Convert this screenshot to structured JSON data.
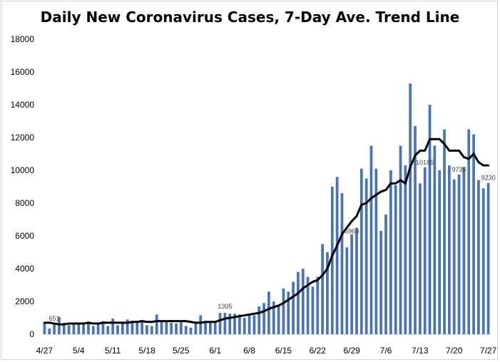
{
  "chart_data": {
    "type": "bar",
    "title": "Daily New Coronavirus Cases, 7-Day Ave. Trend Line",
    "xlabel": "",
    "ylabel": "",
    "ylim": [
      0,
      18000
    ],
    "y_ticks": [
      0,
      2000,
      4000,
      6000,
      8000,
      10000,
      12000,
      14000,
      16000,
      18000
    ],
    "x_ticks": [
      "4/27",
      "5/4",
      "5/11",
      "5/18",
      "5/25",
      "6/1",
      "6/8",
      "6/15",
      "6/22",
      "6/29",
      "7/6",
      "7/13",
      "7/20",
      "7/27"
    ],
    "grid": false,
    "legend": "none",
    "colors": {
      "bars": "#4a74b4",
      "trend": "#000000"
    },
    "series": [
      {
        "type": "bar",
        "values": [
          700,
          350,
          650,
          1050,
          700,
          550,
          700,
          600,
          700,
          750,
          500,
          650,
          800,
          500,
          950,
          550,
          700,
          900,
          700,
          750,
          850,
          550,
          500,
          1200,
          800,
          850,
          700,
          650,
          850,
          500,
          400,
          750,
          1150,
          800,
          750,
          700,
          1300,
          1305,
          1250,
          1250,
          1200,
          1000,
          1150,
          1150,
          1700,
          1900,
          2600,
          2000,
          1750,
          2800,
          2600,
          3200,
          3800,
          4000,
          3500,
          2900,
          3500,
          5500,
          5000,
          9000,
          9600,
          8600,
          5300,
          6100,
          6500,
          10100,
          9500,
          11500,
          10100,
          6300,
          7300,
          10000,
          9100,
          11500,
          10300,
          15300,
          12700,
          9200,
          10185,
          14000,
          11500,
          10000,
          12500,
          10300,
          9450,
          9735,
          10200,
          12500,
          12200,
          9400,
          8900,
          9230
        ]
      },
      {
        "type": "line",
        "name": "7-Day Ave.",
        "values": [
          700,
          700,
          650,
          600,
          600,
          650,
          650,
          650,
          650,
          700,
          650,
          650,
          700,
          700,
          700,
          700,
          700,
          700,
          750,
          750,
          800,
          750,
          750,
          800,
          800,
          800,
          800,
          800,
          800,
          800,
          750,
          700,
          700,
          750,
          750,
          750,
          850,
          950,
          1000,
          1050,
          1100,
          1150,
          1200,
          1250,
          1300,
          1400,
          1550,
          1650,
          1750,
          1900,
          2100,
          2300,
          2500,
          2800,
          3000,
          3200,
          3300,
          3600,
          4000,
          4800,
          5400,
          6100,
          6500,
          6900,
          7200,
          7900,
          8000,
          8300,
          8500,
          8700,
          8800,
          9200,
          9200,
          9400,
          9200,
          10200,
          10900,
          11200,
          11200,
          11900,
          11900,
          11900,
          11600,
          11200,
          11200,
          11200,
          10800,
          10700,
          11000,
          10500,
          10300,
          10300
        ]
      }
    ],
    "annotations": [
      "651",
      "1305",
      "5969",
      "10185",
      "9735",
      "9230"
    ]
  }
}
